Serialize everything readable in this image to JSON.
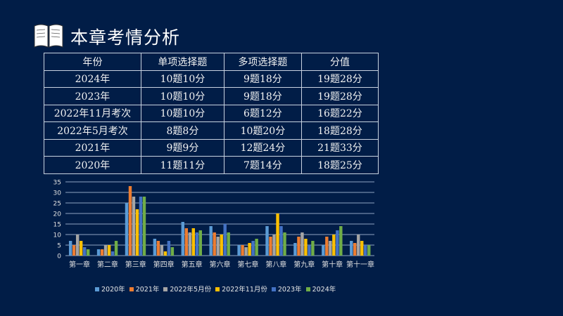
{
  "header": {
    "title": "本章考情分析",
    "icon": "open-book-icon"
  },
  "table": {
    "headers": [
      "年份",
      "单项选择题",
      "多项选择题",
      "分值"
    ],
    "rows": [
      [
        "2024年",
        "10题10分",
        "9题18分",
        "19题28分"
      ],
      [
        "2023年",
        "10题10分",
        "9题18分",
        "19题28分"
      ],
      [
        "2022年11月考次",
        "10题10分",
        "6题12分",
        "16题22分"
      ],
      [
        "2022年5月考次",
        "8题8分",
        "10题20分",
        "18题28分"
      ],
      [
        "2021年",
        "9题9分",
        "12题24分",
        "21题33分"
      ],
      [
        "2020年",
        "11题11分",
        "7题14分",
        "18题25分"
      ]
    ]
  },
  "chart_data": {
    "type": "bar",
    "categories": [
      "第一章",
      "第二章",
      "第三章",
      "第四章",
      "第五章",
      "第六章",
      "第七章",
      "第八章",
      "第九章",
      "第十章",
      "第十一章"
    ],
    "ylim": [
      0,
      35
    ],
    "yticks": [
      "0",
      "5",
      "10",
      "15",
      "20",
      "25",
      "30",
      "35"
    ],
    "grid": true,
    "legend_position": "bottom",
    "series": [
      {
        "name": "2020年",
        "color": "#5b9bd5",
        "values": [
          7,
          3,
          25,
          8,
          16,
          14,
          5,
          14,
          6,
          5,
          7
        ]
      },
      {
        "name": "2021年",
        "color": "#ed7d31",
        "values": [
          5,
          3,
          33,
          7,
          13,
          11,
          5,
          9,
          9,
          9,
          6
        ]
      },
      {
        "name": "2022年5月份",
        "color": "#a5a5a5",
        "values": [
          10,
          5,
          28,
          5,
          11,
          9,
          4,
          10,
          11,
          7,
          10
        ]
      },
      {
        "name": "2022年11月份",
        "color": "#ffc000",
        "values": [
          7,
          5,
          22,
          2,
          13,
          10,
          6,
          20,
          8,
          10,
          7
        ]
      },
      {
        "name": "2023年",
        "color": "#4472c4",
        "values": [
          4,
          2,
          28,
          7,
          11,
          15,
          7,
          14,
          5,
          12,
          5
        ]
      },
      {
        "name": "2024年",
        "color": "#70ad47",
        "values": [
          3,
          7,
          28,
          4,
          12,
          11,
          8,
          11,
          7,
          14,
          5
        ]
      }
    ]
  }
}
